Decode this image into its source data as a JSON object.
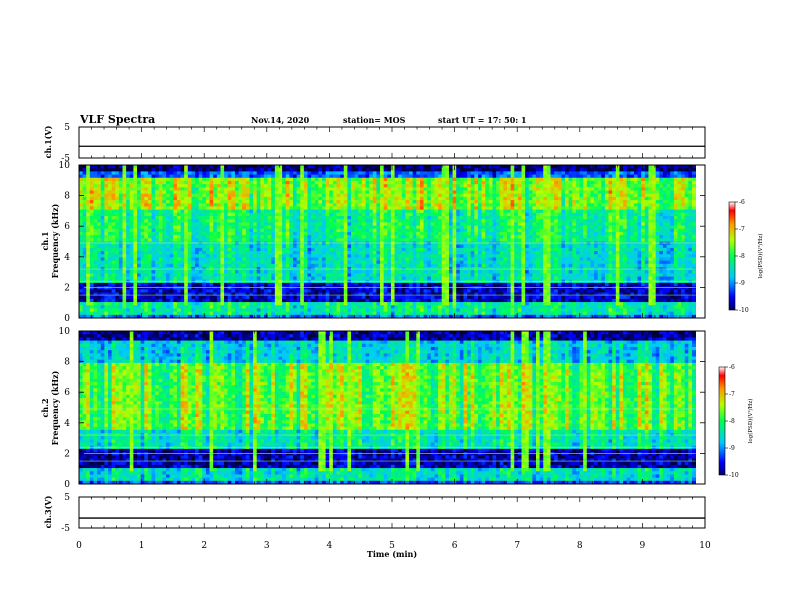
{
  "header": {
    "title": "VLF Spectra",
    "date": "Nov.14, 2020",
    "station": "station= MOS",
    "start": "start  UT  =   17: 50: 1"
  },
  "chart_data": [
    {
      "type": "line",
      "panel": "waveform-ch1",
      "ylabel": "ch.1(V)",
      "ylim": [
        -5,
        5
      ],
      "yticks": [
        "5",
        "-5"
      ],
      "xlim": [
        0,
        10
      ],
      "level": -1.2
    },
    {
      "type": "heatmap",
      "panel": "spectrogram-ch1",
      "ylabel_top": "ch.1",
      "ylabel": "Frequency  (kHz)",
      "ylim": [
        0,
        10
      ],
      "yticks": [
        "0",
        "2",
        "4",
        "6",
        "8",
        "10"
      ],
      "xlim": [
        0,
        10
      ],
      "data_end_min": 9.85,
      "intense_band_khz": [
        7.0,
        9.2
      ],
      "colorbar": {
        "label": "log(PSD)(V²/Hz)",
        "range": [
          -10,
          -6
        ],
        "ticks": [
          "-6",
          "-7",
          "-8",
          "-9",
          "-10"
        ]
      }
    },
    {
      "type": "heatmap",
      "panel": "spectrogram-ch2",
      "ylabel_top": "ch.2",
      "ylabel": "Frequency  (kHz)",
      "ylim": [
        0,
        10
      ],
      "yticks": [
        "0",
        "2",
        "4",
        "6",
        "8",
        "10"
      ],
      "xlim": [
        0,
        10
      ],
      "data_end_min": 9.85,
      "intense_band_khz": [
        3.5,
        8.0
      ],
      "colorbar": {
        "label": "log(PSD)(V²/Hz)",
        "range": [
          -10,
          -6
        ],
        "ticks": [
          "-6",
          "-7",
          "-8",
          "-9",
          "-10"
        ]
      }
    },
    {
      "type": "line",
      "panel": "waveform-ch3",
      "ylabel": "ch.3(V)",
      "ylim": [
        -5,
        5
      ],
      "yticks": [
        "5",
        "-5"
      ],
      "xlim": [
        0,
        10
      ],
      "level": -1.8
    }
  ],
  "xaxis": {
    "label": "Time  (min)",
    "ticks": [
      "0",
      "1",
      "2",
      "3",
      "4",
      "5",
      "6",
      "7",
      "8",
      "9",
      "10"
    ]
  }
}
